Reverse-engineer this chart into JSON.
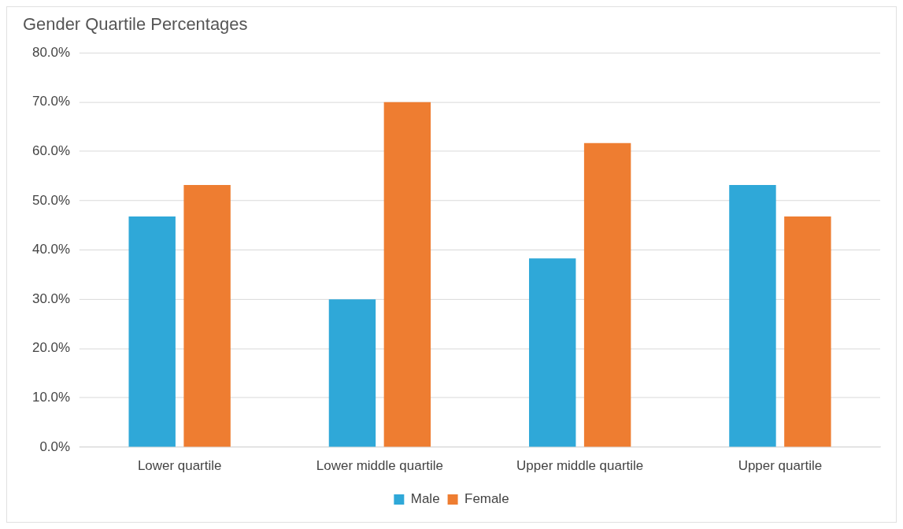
{
  "chart_data": {
    "type": "bar",
    "title": "Gender Quartile Percentages",
    "categories": [
      "Lower quartile",
      "Lower middle quartile",
      "Upper middle quartile",
      "Upper quartile"
    ],
    "series": [
      {
        "name": "Male",
        "color": "#2fa8d8",
        "values": [
          46.8,
          30.0,
          38.3,
          53.2
        ]
      },
      {
        "name": "Female",
        "color": "#ee7d31",
        "values": [
          53.2,
          70.0,
          61.7,
          46.8
        ]
      }
    ],
    "ylim": [
      0,
      80
    ],
    "yticks": [
      {
        "value": 0,
        "label": "0.0%"
      },
      {
        "value": 10,
        "label": "10.0%"
      },
      {
        "value": 20,
        "label": "20.0%"
      },
      {
        "value": 30,
        "label": "30.0%"
      },
      {
        "value": 40,
        "label": "40.0%"
      },
      {
        "value": 50,
        "label": "50.0%"
      },
      {
        "value": 60,
        "label": "60.0%"
      },
      {
        "value": 70,
        "label": "70.0%"
      },
      {
        "value": 80,
        "label": "80.0%"
      }
    ],
    "grid": "y",
    "legend": "bottom"
  }
}
